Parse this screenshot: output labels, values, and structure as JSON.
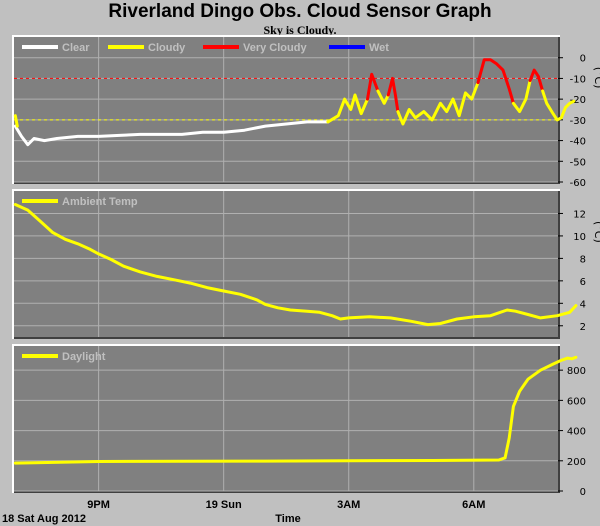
{
  "title": "Riverland Dingo Obs. Cloud Sensor Graph",
  "subtitle": "Sky is Cloudy.",
  "x_axis": {
    "label": "Time",
    "date_label": "18 Sat Aug 2012",
    "ticks": [
      {
        "label": "9PM",
        "t": 21
      },
      {
        "label": "19 Sun",
        "t": 24
      },
      {
        "label": "3AM",
        "t": 27
      },
      {
        "label": "6AM",
        "t": 30
      }
    ],
    "range": [
      18.97,
      32.02
    ]
  },
  "colors": {
    "plot_bg": "#808080",
    "page_bg": "#c0c0c0",
    "clear": "#ffffff",
    "cloudy": "#ffff00",
    "very_cloudy": "#ff0000",
    "wet": "#0000ff",
    "threshold_very_cloudy": "#ff0000",
    "threshold_cloudy": "#ffff00"
  },
  "chart_data": [
    {
      "type": "line",
      "name": "sky-temperature",
      "unit": "(°C)",
      "ylim": [
        -60,
        10
      ],
      "yticks": [
        0,
        -10,
        -20,
        -30,
        -40,
        -50,
        -60
      ],
      "grid": true,
      "legend": [
        "Clear",
        "Cloudy",
        "Very Cloudy",
        "Wet"
      ],
      "thresholds": [
        {
          "y": -10,
          "color": "#ff0000"
        },
        {
          "y": -30,
          "color": "#ffff00"
        }
      ],
      "series": [
        {
          "name": "Clear",
          "color": "#ffffff",
          "points": [
            [
              19.0,
              -33
            ],
            [
              19.15,
              -38
            ],
            [
              19.3,
              -42
            ],
            [
              19.45,
              -39
            ],
            [
              19.7,
              -40
            ],
            [
              20.0,
              -39
            ],
            [
              20.5,
              -38
            ],
            [
              21.0,
              -38
            ],
            [
              21.5,
              -37.5
            ],
            [
              22.0,
              -37
            ],
            [
              22.5,
              -37
            ],
            [
              23.0,
              -37
            ],
            [
              23.5,
              -36
            ],
            [
              24.0,
              -36
            ],
            [
              24.5,
              -35
            ],
            [
              25.0,
              -33
            ],
            [
              25.5,
              -32
            ],
            [
              26.0,
              -31
            ],
            [
              26.5,
              -31
            ]
          ]
        },
        {
          "name": "Cloudy",
          "color": "#ffff00",
          "points": [
            [
              19.0,
              -28
            ],
            [
              19.05,
              -33
            ]
          ]
        },
        {
          "name": "Cloudy",
          "color": "#ffff00",
          "points": [
            [
              26.5,
              -31
            ],
            [
              26.75,
              -28
            ],
            [
              26.9,
              -20
            ],
            [
              27.05,
              -25
            ],
            [
              27.15,
              -18
            ],
            [
              27.3,
              -27
            ],
            [
              27.45,
              -20
            ]
          ]
        },
        {
          "name": "Very Cloudy",
          "color": "#ff0000",
          "points": [
            [
              27.45,
              -20
            ],
            [
              27.55,
              -8
            ],
            [
              27.7,
              -16
            ]
          ]
        },
        {
          "name": "Cloudy",
          "color": "#ffff00",
          "points": [
            [
              27.7,
              -16
            ],
            [
              27.85,
              -22
            ],
            [
              27.95,
              -18
            ]
          ]
        },
        {
          "name": "Very Cloudy",
          "color": "#ff0000",
          "points": [
            [
              27.95,
              -18
            ],
            [
              28.05,
              -10
            ],
            [
              28.12,
              -18
            ],
            [
              28.18,
              -26
            ]
          ]
        },
        {
          "name": "Cloudy",
          "color": "#ffff00",
          "points": [
            [
              28.18,
              -26
            ],
            [
              28.3,
              -32
            ],
            [
              28.45,
              -25
            ],
            [
              28.6,
              -29
            ],
            [
              28.8,
              -26
            ],
            [
              29.0,
              -30
            ],
            [
              29.2,
              -22
            ],
            [
              29.35,
              -26
            ],
            [
              29.5,
              -20
            ],
            [
              29.65,
              -28
            ],
            [
              29.8,
              -17
            ],
            [
              29.95,
              -20
            ],
            [
              30.1,
              -12
            ]
          ]
        },
        {
          "name": "Very Cloudy",
          "color": "#ff0000",
          "points": [
            [
              30.1,
              -12
            ],
            [
              30.25,
              -1
            ],
            [
              30.4,
              -1
            ],
            [
              30.55,
              -3
            ],
            [
              30.7,
              -6
            ],
            [
              30.85,
              -15
            ],
            [
              30.95,
              -22
            ]
          ]
        },
        {
          "name": "Cloudy",
          "color": "#ffff00",
          "points": [
            [
              30.95,
              -22
            ],
            [
              31.1,
              -26
            ],
            [
              31.25,
              -20
            ],
            [
              31.35,
              -11
            ]
          ]
        },
        {
          "name": "Very Cloudy",
          "color": "#ff0000",
          "points": [
            [
              31.35,
              -11
            ],
            [
              31.45,
              -6
            ],
            [
              31.55,
              -9
            ],
            [
              31.65,
              -16
            ]
          ]
        },
        {
          "name": "Cloudy",
          "color": "#ffff00",
          "points": [
            [
              31.65,
              -16
            ],
            [
              31.75,
              -22
            ],
            [
              31.9,
              -27
            ],
            [
              32.0,
              -30
            ],
            [
              32.1,
              -29
            ],
            [
              32.2,
              -24
            ],
            [
              32.3,
              -22
            ],
            [
              32.4,
              -21
            ]
          ]
        }
      ]
    },
    {
      "type": "line",
      "name": "ambient-temperature",
      "unit": "(°C)",
      "ylim": [
        1,
        14
      ],
      "yticks": [
        12,
        10,
        8,
        6,
        4,
        2
      ],
      "grid": true,
      "legend": [
        "Ambient Temp"
      ],
      "series": [
        {
          "name": "Ambient Temp",
          "color": "#ffff00",
          "points": [
            [
              19.0,
              12.8
            ],
            [
              19.3,
              12.3
            ],
            [
              19.6,
              11.3
            ],
            [
              19.9,
              10.3
            ],
            [
              20.2,
              9.7
            ],
            [
              20.5,
              9.3
            ],
            [
              20.8,
              8.8
            ],
            [
              21.0,
              8.4
            ],
            [
              21.3,
              7.9
            ],
            [
              21.6,
              7.3
            ],
            [
              22.0,
              6.8
            ],
            [
              22.4,
              6.4
            ],
            [
              22.8,
              6.1
            ],
            [
              23.2,
              5.8
            ],
            [
              23.6,
              5.4
            ],
            [
              24.0,
              5.1
            ],
            [
              24.4,
              4.8
            ],
            [
              24.8,
              4.3
            ],
            [
              25.0,
              3.9
            ],
            [
              25.3,
              3.6
            ],
            [
              25.6,
              3.4
            ],
            [
              26.0,
              3.3
            ],
            [
              26.3,
              3.2
            ],
            [
              26.6,
              2.9
            ],
            [
              26.8,
              2.6
            ],
            [
              27.0,
              2.7
            ],
            [
              27.5,
              2.8
            ],
            [
              28.0,
              2.7
            ],
            [
              28.5,
              2.4
            ],
            [
              28.9,
              2.1
            ],
            [
              29.2,
              2.2
            ],
            [
              29.6,
              2.6
            ],
            [
              30.0,
              2.8
            ],
            [
              30.4,
              2.9
            ],
            [
              30.8,
              3.4
            ],
            [
              31.0,
              3.3
            ],
            [
              31.3,
              3.0
            ],
            [
              31.6,
              2.7
            ],
            [
              32.0,
              2.9
            ],
            [
              32.3,
              3.2
            ],
            [
              32.45,
              3.8
            ]
          ]
        }
      ]
    },
    {
      "type": "line",
      "name": "daylight",
      "unit": "",
      "ylim": [
        0,
        960
      ],
      "yticks": [
        800,
        600,
        400,
        200,
        0
      ],
      "grid": true,
      "legend": [
        "Daylight"
      ],
      "series": [
        {
          "name": "Daylight",
          "color": "#ffff00",
          "points": [
            [
              19.0,
              185
            ],
            [
              21.0,
              195
            ],
            [
              23.0,
              197
            ],
            [
              25.0,
              198
            ],
            [
              27.0,
              200
            ],
            [
              29.0,
              202
            ],
            [
              30.6,
              205
            ],
            [
              30.75,
              220
            ],
            [
              30.85,
              350
            ],
            [
              30.95,
              560
            ],
            [
              31.1,
              660
            ],
            [
              31.3,
              740
            ],
            [
              31.6,
              800
            ],
            [
              31.9,
              840
            ],
            [
              32.1,
              865
            ],
            [
              32.25,
              880
            ],
            [
              32.35,
              875
            ],
            [
              32.45,
              885
            ]
          ]
        }
      ]
    }
  ]
}
